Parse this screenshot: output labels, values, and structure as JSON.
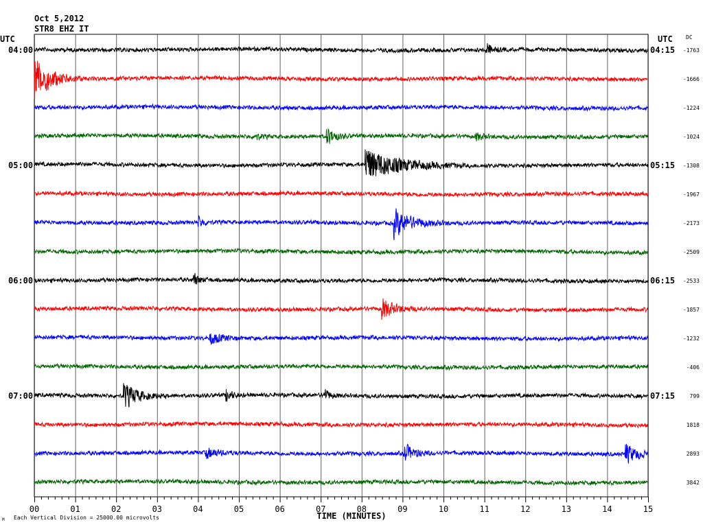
{
  "header": {
    "date": "Oct 5,2012",
    "station": "STR8 EHZ IT"
  },
  "footer": {
    "scale_note": "Each Vertical Division = 25000.00 microvolts",
    "corner_mark": "M"
  },
  "chart_data": {
    "type": "line",
    "title": "",
    "xlabel": "TIME (MINUTES)",
    "x_ticks": [
      "00",
      "01",
      "02",
      "03",
      "04",
      "05",
      "06",
      "07",
      "08",
      "09",
      "10",
      "11",
      "12",
      "13",
      "14",
      "15"
    ],
    "xlim": [
      0,
      15
    ],
    "left_axis_label": "UTC",
    "right_axis_label": "UTC",
    "dc_label": "DC",
    "grid": true,
    "trace_colors": [
      "#000000",
      "#ff0000",
      "#0000ff",
      "#006400"
    ],
    "traces": [
      {
        "left_time": "04:00",
        "right_time": "04:15",
        "dc": "-1763",
        "color": "#000000",
        "events": [
          {
            "t": 11.05,
            "amp": 10,
            "dur": 0.3
          }
        ]
      },
      {
        "left_time": "",
        "right_time": "",
        "dc": "-1666",
        "color": "#ff0000",
        "events": [
          {
            "t": 0.02,
            "amp": 36,
            "dur": 0.8
          }
        ]
      },
      {
        "left_time": "",
        "right_time": "",
        "dc": "-1224",
        "color": "#0000ff",
        "events": []
      },
      {
        "left_time": "",
        "right_time": "",
        "dc": "-1024",
        "color": "#006400",
        "events": [
          {
            "t": 7.15,
            "amp": 14,
            "dur": 0.4
          },
          {
            "t": 5.4,
            "amp": 5,
            "dur": 0.3
          },
          {
            "t": 10.8,
            "amp": 6,
            "dur": 0.3
          }
        ]
      },
      {
        "left_time": "05:00",
        "right_time": "05:15",
        "dc": "-1308",
        "color": "#000000",
        "events": [
          {
            "t": 8.1,
            "amp": 28,
            "dur": 1.6
          }
        ]
      },
      {
        "left_time": "",
        "right_time": "",
        "dc": "-1967",
        "color": "#ff0000",
        "events": []
      },
      {
        "left_time": "",
        "right_time": "",
        "dc": "-2173",
        "color": "#0000ff",
        "events": [
          {
            "t": 8.8,
            "amp": 22,
            "dur": 0.9
          },
          {
            "t": 4.0,
            "amp": 8,
            "dur": 0.3
          }
        ]
      },
      {
        "left_time": "",
        "right_time": "",
        "dc": "-2509",
        "color": "#006400",
        "events": []
      },
      {
        "left_time": "06:00",
        "right_time": "06:15",
        "dc": "-2533",
        "color": "#000000",
        "events": [
          {
            "t": 3.9,
            "amp": 9,
            "dur": 0.3
          }
        ]
      },
      {
        "left_time": "",
        "right_time": "",
        "dc": "-1857",
        "color": "#ff0000",
        "events": [
          {
            "t": 8.5,
            "amp": 16,
            "dur": 0.6
          }
        ]
      },
      {
        "left_time": "",
        "right_time": "",
        "dc": "-1232",
        "color": "#0000ff",
        "events": [
          {
            "t": 4.3,
            "amp": 9,
            "dur": 0.6
          }
        ]
      },
      {
        "left_time": "",
        "right_time": "",
        "dc": "-406",
        "color": "#006400",
        "events": []
      },
      {
        "left_time": "07:00",
        "right_time": "07:15",
        "dc": "799",
        "color": "#000000",
        "events": [
          {
            "t": 2.2,
            "amp": 20,
            "dur": 0.7
          },
          {
            "t": 4.7,
            "amp": 9,
            "dur": 0.3
          },
          {
            "t": 7.1,
            "amp": 8,
            "dur": 0.3
          }
        ]
      },
      {
        "left_time": "",
        "right_time": "",
        "dc": "1818",
        "color": "#ff0000",
        "events": []
      },
      {
        "left_time": "",
        "right_time": "",
        "dc": "2893",
        "color": "#0000ff",
        "events": [
          {
            "t": 9.05,
            "amp": 14,
            "dur": 0.5
          },
          {
            "t": 14.45,
            "amp": 16,
            "dur": 0.6
          },
          {
            "t": 4.2,
            "amp": 8,
            "dur": 0.6
          }
        ]
      },
      {
        "left_time": "",
        "right_time": "",
        "dc": "3842",
        "color": "#006400",
        "events": []
      }
    ]
  }
}
